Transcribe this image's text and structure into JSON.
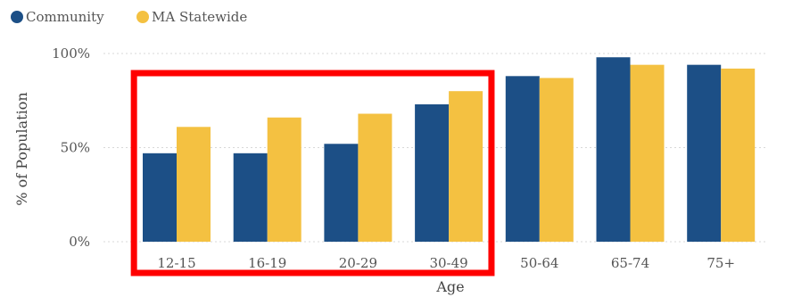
{
  "chart_data": {
    "type": "bar",
    "title": "",
    "xlabel": "Age",
    "ylabel": "% of Population",
    "categories": [
      "12-15",
      "16-19",
      "20-29",
      "30-49",
      "50-64",
      "65-74",
      "75+"
    ],
    "series": [
      {
        "name": "Community",
        "values": [
          47,
          47,
          52,
          73,
          88,
          98,
          94
        ],
        "color": "#1c4f86"
      },
      {
        "name": "MA Statewide",
        "values": [
          61,
          66,
          68,
          80,
          87,
          94,
          92
        ],
        "color": "#f4c141"
      }
    ],
    "ylim": [
      0,
      100
    ],
    "yticks": [
      "0%",
      "50%",
      "100%"
    ],
    "ytick_values": [
      0,
      50,
      100
    ],
    "grid": true,
    "legend_position": "top-left",
    "highlight": {
      "categories": [
        "12-15",
        "16-19",
        "20-29",
        "30-49"
      ],
      "color": "#ff0000"
    }
  }
}
